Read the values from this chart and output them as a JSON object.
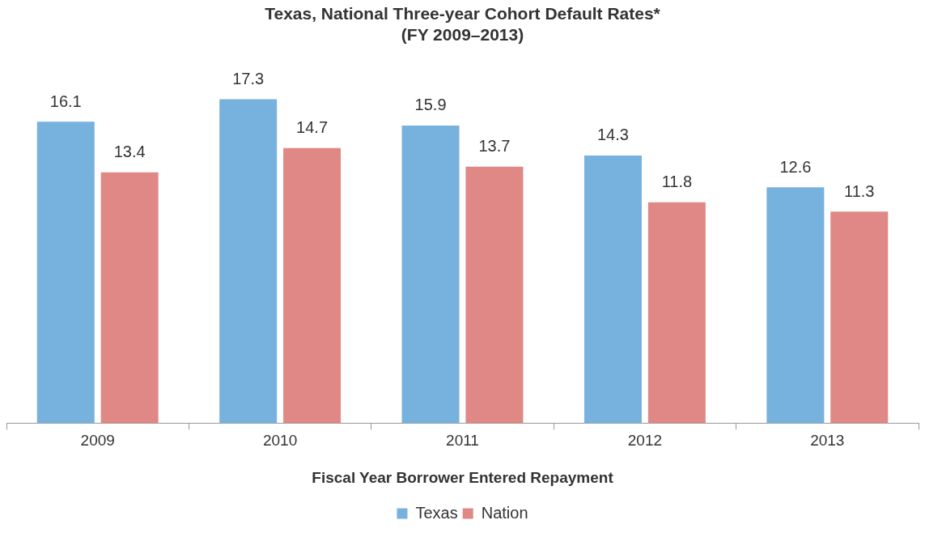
{
  "chart_data": {
    "type": "bar",
    "title": "Texas, National Three-year Cohort Default Rates*\n(FY 2009–2013)",
    "xlabel": "Fiscal Year Borrower Entered Repayment",
    "categories": [
      "2009",
      "2010",
      "2011",
      "2012",
      "2013"
    ],
    "series": [
      {
        "name": "Texas",
        "color": "#77b1dd",
        "values": [
          16.1,
          17.3,
          15.9,
          14.3,
          12.6
        ]
      },
      {
        "name": "Nation",
        "color": "#e08886",
        "values": [
          13.4,
          14.7,
          13.7,
          11.8,
          11.3
        ]
      }
    ],
    "data_labels": true,
    "grid": false,
    "legend": "bottom"
  }
}
